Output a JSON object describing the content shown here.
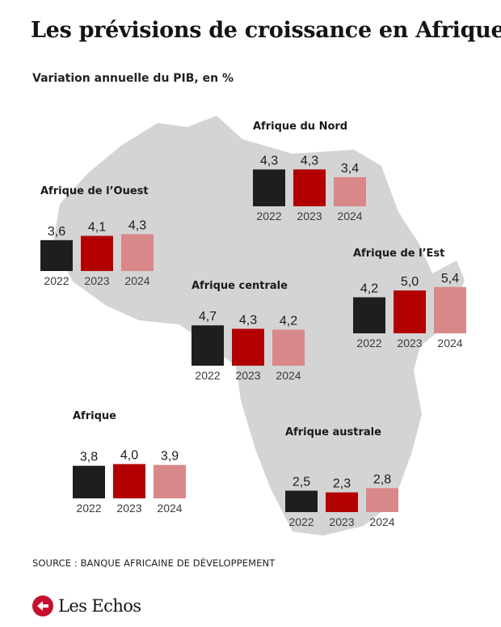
{
  "header": {
    "title": "Les prévisions de croissance en Afrique",
    "subtitle": "Variation annuelle du PIB, en %"
  },
  "footer": {
    "source": "SOURCE : BANQUE AFRICAINE DE DÉVELOPPEMENT",
    "brand": "Les Echos"
  },
  "colors": {
    "bar_2022": "#1e1e1e",
    "bar_2023": "#b20000",
    "bar_2024": "#d9888a",
    "map": "#d4d4d4",
    "logo_red": "#c8102e"
  },
  "chart_data": {
    "type": "bar",
    "categories": [
      "2022",
      "2023",
      "2024"
    ],
    "unit": "Variation annuelle du PIB, en %",
    "groups": [
      {
        "region": "Afrique du Nord",
        "values": [
          4.3,
          4.3,
          3.4
        ],
        "labels": [
          "4,3",
          "4,3",
          "3,4"
        ]
      },
      {
        "region": "Afrique de l’Ouest",
        "values": [
          3.6,
          4.1,
          4.3
        ],
        "labels": [
          "3,6",
          "4,1",
          "4,3"
        ]
      },
      {
        "region": "Afrique de l’Est",
        "values": [
          4.2,
          5.0,
          5.4
        ],
        "labels": [
          "4,2",
          "5,0",
          "5,4"
        ]
      },
      {
        "region": "Afrique centrale",
        "values": [
          4.7,
          4.3,
          4.2
        ],
        "labels": [
          "4,7",
          "4,3",
          "4,2"
        ]
      },
      {
        "region": "Afrique",
        "values": [
          3.8,
          4.0,
          3.9
        ],
        "labels": [
          "3,8",
          "4,0",
          "3,9"
        ]
      },
      {
        "region": "Afrique australe",
        "values": [
          2.5,
          2.3,
          2.8
        ],
        "labels": [
          "2,5",
          "2,3",
          "2,8"
        ]
      }
    ]
  }
}
